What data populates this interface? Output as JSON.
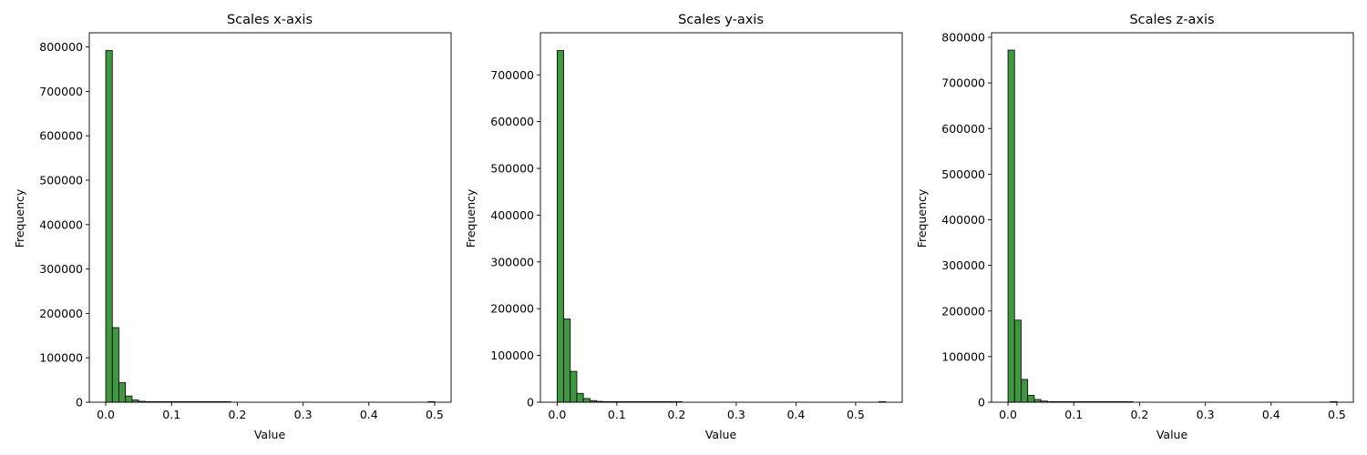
{
  "chart_data": [
    {
      "type": "bar",
      "title": "Scales x-axis",
      "xlabel": "Value",
      "ylabel": "Frequency",
      "xlim": [
        -0.025,
        0.525
      ],
      "ylim": [
        0,
        832000
      ],
      "xticks": [
        0.0,
        0.1,
        0.2,
        0.3,
        0.4,
        0.5
      ],
      "xtick_labels": [
        "0.0",
        "0.1",
        "0.2",
        "0.3",
        "0.4",
        "0.5"
      ],
      "yticks": [
        0,
        100000,
        200000,
        300000,
        400000,
        500000,
        600000,
        700000,
        800000
      ],
      "ytick_labels": [
        "0",
        "100000",
        "200000",
        "300000",
        "400000",
        "500000",
        "600000",
        "700000",
        "800000"
      ],
      "bin_start": 0.0,
      "bin_width": 0.01,
      "values": [
        792000,
        168000,
        44000,
        14000,
        5000,
        2000,
        1200,
        700,
        300,
        150,
        80,
        40,
        20,
        10,
        5,
        3,
        2,
        1,
        1,
        0,
        0,
        0,
        0,
        0,
        0,
        0,
        0,
        0,
        0,
        0,
        0,
        0,
        0,
        0,
        0,
        0,
        0,
        0,
        0,
        0,
        0,
        0,
        0,
        0,
        0,
        0,
        0,
        0,
        0,
        1
      ],
      "grid": false,
      "colors": {
        "bar_fill": "#2e8b2e",
        "bar_edge": "#000000"
      }
    },
    {
      "type": "bar",
      "title": "Scales y-axis",
      "xlabel": "Value",
      "ylabel": "Frequency",
      "xlim": [
        -0.028,
        0.578
      ],
      "ylim": [
        0,
        790000
      ],
      "xticks": [
        0.0,
        0.1,
        0.2,
        0.3,
        0.4,
        0.5
      ],
      "xtick_labels": [
        "0.0",
        "0.1",
        "0.2",
        "0.3",
        "0.4",
        "0.5"
      ],
      "yticks": [
        0,
        100000,
        200000,
        300000,
        400000,
        500000,
        600000,
        700000
      ],
      "ytick_labels": [
        "0",
        "100000",
        "200000",
        "300000",
        "400000",
        "500000",
        "600000",
        "700000"
      ],
      "bin_start": 0.0,
      "bin_width": 0.011,
      "values": [
        752000,
        178000,
        66000,
        19000,
        8000,
        3500,
        1800,
        900,
        400,
        200,
        100,
        50,
        25,
        12,
        6,
        3,
        2,
        1,
        1,
        0,
        0,
        0,
        0,
        0,
        0,
        0,
        0,
        0,
        0,
        0,
        0,
        0,
        0,
        0,
        0,
        0,
        0,
        0,
        0,
        0,
        0,
        0,
        0,
        0,
        0,
        0,
        0,
        0,
        0,
        1
      ],
      "grid": false,
      "colors": {
        "bar_fill": "#2e8b2e",
        "bar_edge": "#000000"
      }
    },
    {
      "type": "bar",
      "title": "Scales z-axis",
      "xlabel": "Value",
      "ylabel": "Frequency",
      "xlim": [
        -0.025,
        0.525
      ],
      "ylim": [
        0,
        810000
      ],
      "xticks": [
        0.0,
        0.1,
        0.2,
        0.3,
        0.4,
        0.5
      ],
      "xtick_labels": [
        "0.0",
        "0.1",
        "0.2",
        "0.3",
        "0.4",
        "0.5"
      ],
      "yticks": [
        0,
        100000,
        200000,
        300000,
        400000,
        500000,
        600000,
        700000,
        800000
      ],
      "ytick_labels": [
        "0",
        "100000",
        "200000",
        "300000",
        "400000",
        "500000",
        "600000",
        "700000",
        "800000"
      ],
      "bin_start": 0.0,
      "bin_width": 0.01,
      "values": [
        772000,
        180000,
        50000,
        15000,
        6000,
        2500,
        1300,
        700,
        300,
        150,
        80,
        40,
        20,
        10,
        5,
        3,
        2,
        1,
        1,
        0,
        0,
        0,
        0,
        0,
        0,
        0,
        0,
        0,
        0,
        0,
        0,
        0,
        0,
        0,
        0,
        0,
        0,
        0,
        0,
        0,
        0,
        0,
        0,
        0,
        0,
        0,
        0,
        0,
        0,
        1
      ],
      "grid": false,
      "colors": {
        "bar_fill": "#2e8b2e",
        "bar_edge": "#000000"
      }
    }
  ]
}
